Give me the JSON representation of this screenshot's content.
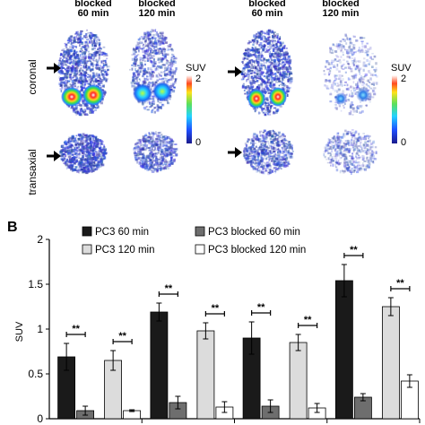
{
  "imaging": {
    "headers_left": [
      "blocked\n60 min",
      "blocked\n120 min"
    ],
    "headers_right": [
      "blocked\n60 min",
      "blocked\n120 min"
    ],
    "row_labels": [
      "coronal",
      "transaxial"
    ],
    "colorbar_label": "SUV",
    "colorbar_max": "2",
    "colorbar_min": "0",
    "colors": {
      "background": "#ffffff",
      "speckle": "#2a35d0",
      "hot": "#ff3020"
    }
  },
  "panel_b": {
    "letter": "B",
    "legend": [
      "PC3 60 min",
      "PC3 blocked 60 min",
      "PC3 120 min",
      "PC3 blocked 120 min"
    ],
    "significance_label": "**"
  },
  "chart_data": {
    "type": "bar",
    "ylabel": "SUV",
    "ylim": [
      0,
      2
    ],
    "yticks": [
      "0",
      "0.5",
      "1",
      "1.5",
      "2"
    ],
    "series": [
      {
        "name": "PC3 60 min",
        "color": "#1a1a1a",
        "values": [
          0.69,
          1.19,
          0.9,
          1.54
        ],
        "errors": [
          0.15,
          0.1,
          0.18,
          0.18
        ]
      },
      {
        "name": "PC3 blocked 60 min",
        "color": "#6e6e6e",
        "values": [
          0.09,
          0.18,
          0.14,
          0.24
        ],
        "errors": [
          0.05,
          0.07,
          0.07,
          0.04
        ]
      },
      {
        "name": "PC3 120 min",
        "color": "#dcdcdc",
        "values": [
          0.65,
          0.98,
          0.85,
          1.25
        ],
        "errors": [
          0.11,
          0.09,
          0.09,
          0.1
        ]
      },
      {
        "name": "PC3 blocked 120 min",
        "color": "#ffffff",
        "values": [
          0.09,
          0.13,
          0.12,
          0.42
        ],
        "errors": [
          0.01,
          0.06,
          0.05,
          0.07
        ]
      }
    ],
    "groups": 4,
    "grid": false,
    "legend_position": "top"
  }
}
